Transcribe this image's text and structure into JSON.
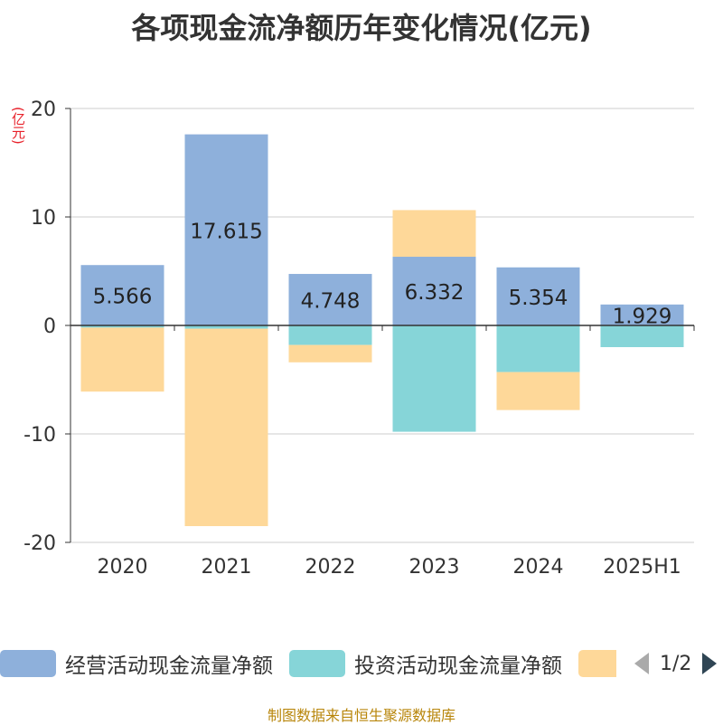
{
  "chart_data": {
    "type": "bar",
    "stacked": true,
    "title": "各项现金流净额历年变化情况(亿元)",
    "ylabel": "(亿元)",
    "ylim": [
      -20,
      20
    ],
    "yticks": [
      20,
      10,
      0,
      -10,
      -20
    ],
    "categories": [
      "2020",
      "2021",
      "2022",
      "2023",
      "2024",
      "2025H1"
    ],
    "series": [
      {
        "name": "经营活动现金流量净额",
        "color": "#8eb0db",
        "values": [
          5.566,
          17.615,
          4.748,
          6.332,
          5.354,
          1.929
        ],
        "labels": [
          "5.566",
          "17.615",
          "4.748",
          "6.332",
          "5.354",
          "1.929"
        ]
      },
      {
        "name": "投资活动现金流量净额",
        "color": "#86d5d8",
        "values": [
          -0.2,
          -0.3,
          -1.8,
          -9.8,
          -4.3,
          -2.0
        ]
      },
      {
        "name": "",
        "color": "#fed899",
        "values": [
          -5.9,
          -18.2,
          -1.6,
          4.3,
          -3.5,
          0
        ]
      }
    ],
    "grid": true,
    "legend_position": "bottom"
  },
  "legend": {
    "page": "1/2"
  },
  "colors": {
    "pager_active": "#2f4554",
    "pager_inactive": "#aaaaaa"
  },
  "source": "制图数据来自恒生聚源数据库"
}
